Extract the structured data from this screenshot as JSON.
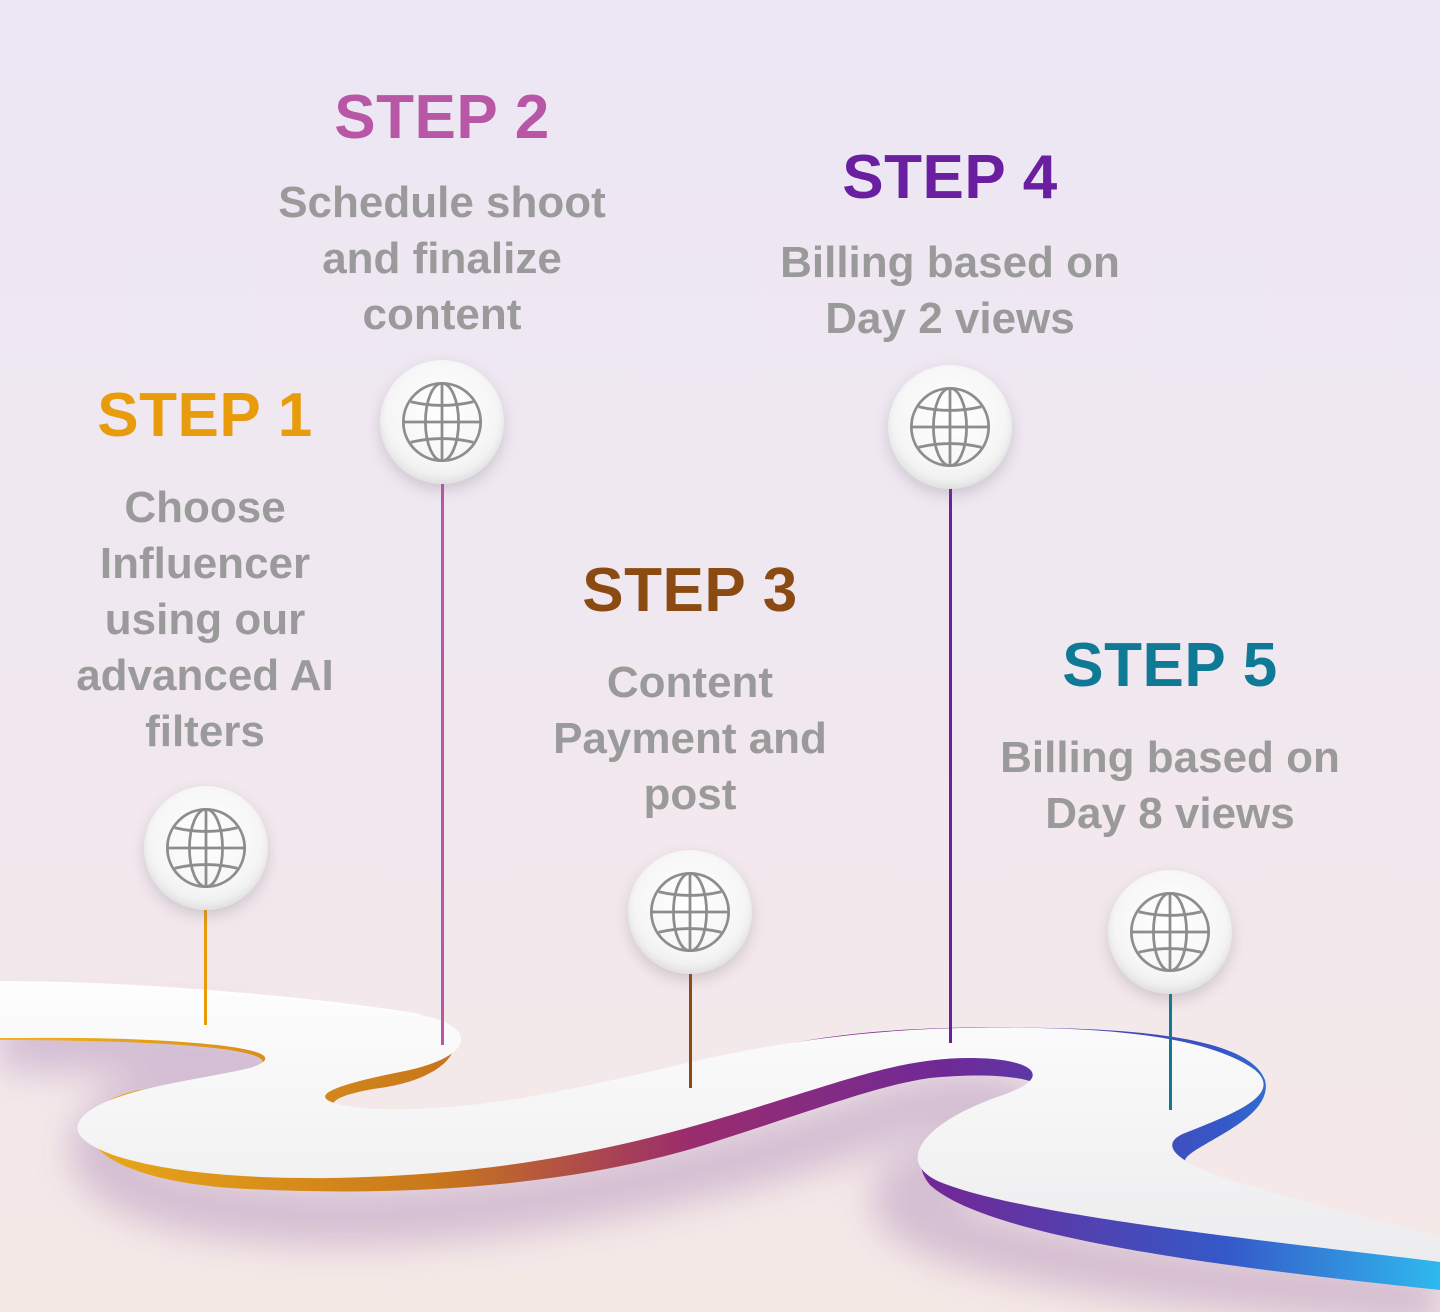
{
  "steps": [
    {
      "heading": "STEP 1",
      "description": "Choose\nInfluencer\nusing our\nadvanced AI\nfilters",
      "color": "#e89c0c",
      "icon": "globe-icon"
    },
    {
      "heading": "STEP 2",
      "description": "Schedule shoot\nand finalize\ncontent",
      "color": "#b857a6",
      "icon": "globe-icon"
    },
    {
      "heading": "STEP 3",
      "description": "Content\nPayment and\npost",
      "color": "#8a4a12",
      "icon": "globe-icon"
    },
    {
      "heading": "STEP 4",
      "description": "Billing based on\nDay 2 views",
      "color": "#6a1fa0",
      "icon": "globe-icon"
    },
    {
      "heading": "STEP 5",
      "description": "Billing based on\nDay 8 views",
      "color": "#0f7a96",
      "icon": "globe-icon"
    }
  ],
  "road_gradient": [
    "#f2b418",
    "#c9781a",
    "#9a2c6e",
    "#6e2a98",
    "#3558c8",
    "#2fb9ee"
  ]
}
